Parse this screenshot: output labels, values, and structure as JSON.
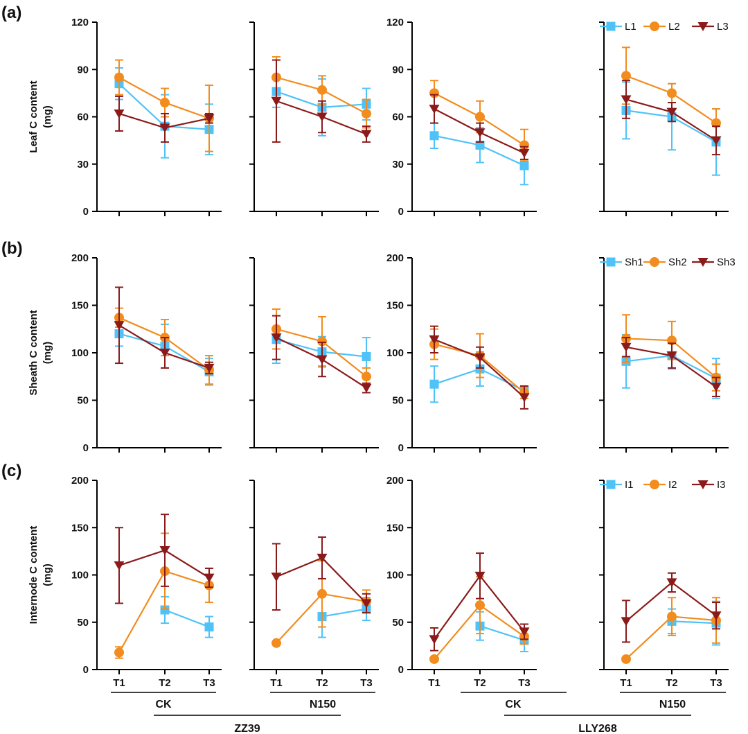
{
  "colors": {
    "series1": "#4fc3f7",
    "series2": "#f28c1e",
    "series3": "#8b1a1a",
    "axis": "#000000"
  },
  "group_labels": {
    "treatments": [
      "CK",
      "N150",
      "CK",
      "N150"
    ],
    "cultivars": [
      "ZZ39",
      "LLY268"
    ]
  },
  "chart_data": [
    {
      "id": "a",
      "type": "line",
      "panel_label": "(a)",
      "ylabel_line1": "Leaf C content",
      "ylabel_line2": "(mg)",
      "ylim": [
        0,
        120
      ],
      "yticks": [
        "0",
        "30",
        "60",
        "90",
        "120"
      ],
      "categories": [
        "T1",
        "T2",
        "T3"
      ],
      "legend": [
        "L1",
        "L2",
        "L3"
      ],
      "subplots": [
        {
          "cultivar": "ZZ39",
          "treatment": "CK",
          "series": [
            {
              "name": "L1",
              "values": [
                81,
                54,
                52
              ],
              "errors": [
                10,
                20,
                16
              ]
            },
            {
              "name": "L2",
              "values": [
                85,
                69,
                59
              ],
              "errors": [
                11,
                9,
                21
              ]
            },
            {
              "name": "L3",
              "values": [
                62,
                53,
                59
              ],
              "errors": [
                11,
                9,
                3
              ]
            }
          ]
        },
        {
          "cultivar": "ZZ39",
          "treatment": "N150",
          "series": [
            {
              "name": "L1",
              "values": [
                76,
                66,
                68
              ],
              "errors": [
                10,
                18,
                10
              ]
            },
            {
              "name": "L2",
              "values": [
                85,
                77,
                62
              ],
              "errors": [
                13,
                9,
                9
              ]
            },
            {
              "name": "L3",
              "values": [
                70,
                60,
                49
              ],
              "errors": [
                26,
                10,
                5
              ]
            }
          ]
        },
        {
          "cultivar": "LLY268",
          "treatment": "CK",
          "series": [
            {
              "name": "L1",
              "values": [
                48,
                42,
                29
              ],
              "errors": [
                8,
                11,
                12
              ]
            },
            {
              "name": "L2",
              "values": [
                75,
                60,
                42
              ],
              "errors": [
                8,
                10,
                10
              ]
            },
            {
              "name": "L3",
              "values": [
                65,
                50,
                37
              ],
              "errors": [
                9,
                6,
                4
              ]
            }
          ]
        },
        {
          "cultivar": "LLY268",
          "treatment": "N150",
          "series": [
            {
              "name": "L1",
              "values": [
                64,
                60,
                44
              ],
              "errors": [
                18,
                21,
                21
              ]
            },
            {
              "name": "L2",
              "values": [
                86,
                75,
                56
              ],
              "errors": [
                18,
                6,
                9
              ]
            },
            {
              "name": "L3",
              "values": [
                71,
                63,
                45
              ],
              "errors": [
                12,
                6,
                9
              ]
            }
          ]
        }
      ]
    },
    {
      "id": "b",
      "type": "line",
      "panel_label": "(b)",
      "ylabel_line1": "Sheath C content",
      "ylabel_line2": "(mg)",
      "ylim": [
        0,
        200
      ],
      "yticks": [
        "0",
        "50",
        "100",
        "150",
        "200"
      ],
      "categories": [
        "T1",
        "T2",
        "T3"
      ],
      "legend": [
        "Sh1",
        "Sh2",
        "Sh3"
      ],
      "subplots": [
        {
          "cultivar": "ZZ39",
          "treatment": "CK",
          "series": [
            {
              "name": "Sh1",
              "values": [
                120,
                107,
                80
              ],
              "errors": [
                13,
                23,
                14
              ]
            },
            {
              "name": "Sh2",
              "values": [
                137,
                116,
                82
              ],
              "errors": [
                10,
                19,
                15
              ]
            },
            {
              "name": "Sh3",
              "values": [
                129,
                100,
                84
              ],
              "errors": [
                40,
                16,
                6
              ]
            }
          ]
        },
        {
          "cultivar": "ZZ39",
          "treatment": "N150",
          "series": [
            {
              "name": "Sh1",
              "values": [
                114,
                101,
                96
              ],
              "errors": [
                25,
                16,
                20
              ]
            },
            {
              "name": "Sh2",
              "values": [
                125,
                112,
                75
              ],
              "errors": [
                21,
                26,
                9
              ]
            },
            {
              "name": "Sh3",
              "values": [
                116,
                93,
                63
              ],
              "errors": [
                23,
                18,
                5
              ]
            }
          ]
        },
        {
          "cultivar": "LLY268",
          "treatment": "CK",
          "series": [
            {
              "name": "Sh1",
              "values": [
                67,
                83,
                60
              ],
              "errors": [
                19,
                18,
                4
              ]
            },
            {
              "name": "Sh2",
              "values": [
                109,
                97,
                58
              ],
              "errors": [
                16,
                23,
                6
              ]
            },
            {
              "name": "Sh3",
              "values": [
                114,
                95,
                53
              ],
              "errors": [
                14,
                11,
                12
              ]
            }
          ]
        },
        {
          "cultivar": "LLY268",
          "treatment": "N150",
          "series": [
            {
              "name": "Sh1",
              "values": [
                91,
                97,
                73
              ],
              "errors": [
                28,
                14,
                21
              ]
            },
            {
              "name": "Sh2",
              "values": [
                115,
                113,
                74
              ],
              "errors": [
                25,
                20,
                14
              ]
            },
            {
              "name": "Sh3",
              "values": [
                106,
                97,
                64
              ],
              "errors": [
                10,
                13,
                10
              ]
            }
          ]
        }
      ]
    },
    {
      "id": "c",
      "type": "line",
      "panel_label": "(c)",
      "ylabel_line1": "Internode C content",
      "ylabel_line2": "(mg)",
      "ylim": [
        0,
        200
      ],
      "yticks": [
        "0",
        "50",
        "100",
        "150",
        "200"
      ],
      "categories": [
        "T1",
        "T2",
        "T3"
      ],
      "legend": [
        "I1",
        "I2",
        "I3"
      ],
      "subplots": [
        {
          "cultivar": "ZZ39",
          "treatment": "CK",
          "series": [
            {
              "name": "I1",
              "values": [
                null,
                63,
                45
              ],
              "errors": [
                0,
                14,
                11
              ]
            },
            {
              "name": "I2",
              "values": [
                18,
                104,
                89
              ],
              "errors": [
                6,
                40,
                18
              ]
            },
            {
              "name": "I3",
              "values": [
                110,
                126,
                97
              ],
              "errors": [
                40,
                38,
                10
              ]
            }
          ]
        },
        {
          "cultivar": "ZZ39",
          "treatment": "N150",
          "series": [
            {
              "name": "I1",
              "values": [
                null,
                56,
                64
              ],
              "errors": [
                0,
                22,
                12
              ]
            },
            {
              "name": "I2",
              "values": [
                28,
                80,
                72
              ],
              "errors": [
                0,
                35,
                12
              ]
            },
            {
              "name": "I3",
              "values": [
                98,
                118,
                70
              ],
              "errors": [
                35,
                22,
                10
              ]
            }
          ]
        },
        {
          "cultivar": "LLY268",
          "treatment": "CK",
          "series": [
            {
              "name": "I1",
              "values": [
                null,
                46,
                31
              ],
              "errors": [
                0,
                15,
                12
              ]
            },
            {
              "name": "I2",
              "values": [
                11,
                68,
                35
              ],
              "errors": [
                0,
                30,
                8
              ]
            },
            {
              "name": "I3",
              "values": [
                32,
                99,
                40
              ],
              "errors": [
                12,
                24,
                8
              ]
            }
          ]
        },
        {
          "cultivar": "LLY268",
          "treatment": "N150",
          "series": [
            {
              "name": "I1",
              "values": [
                null,
                51,
                49
              ],
              "errors": [
                0,
                13,
                23
              ]
            },
            {
              "name": "I2",
              "values": [
                11,
                56,
                52
              ],
              "errors": [
                0,
                20,
                24
              ]
            },
            {
              "name": "I3",
              "values": [
                51,
                92,
                57
              ],
              "errors": [
                22,
                10,
                14
              ]
            }
          ]
        }
      ]
    }
  ]
}
